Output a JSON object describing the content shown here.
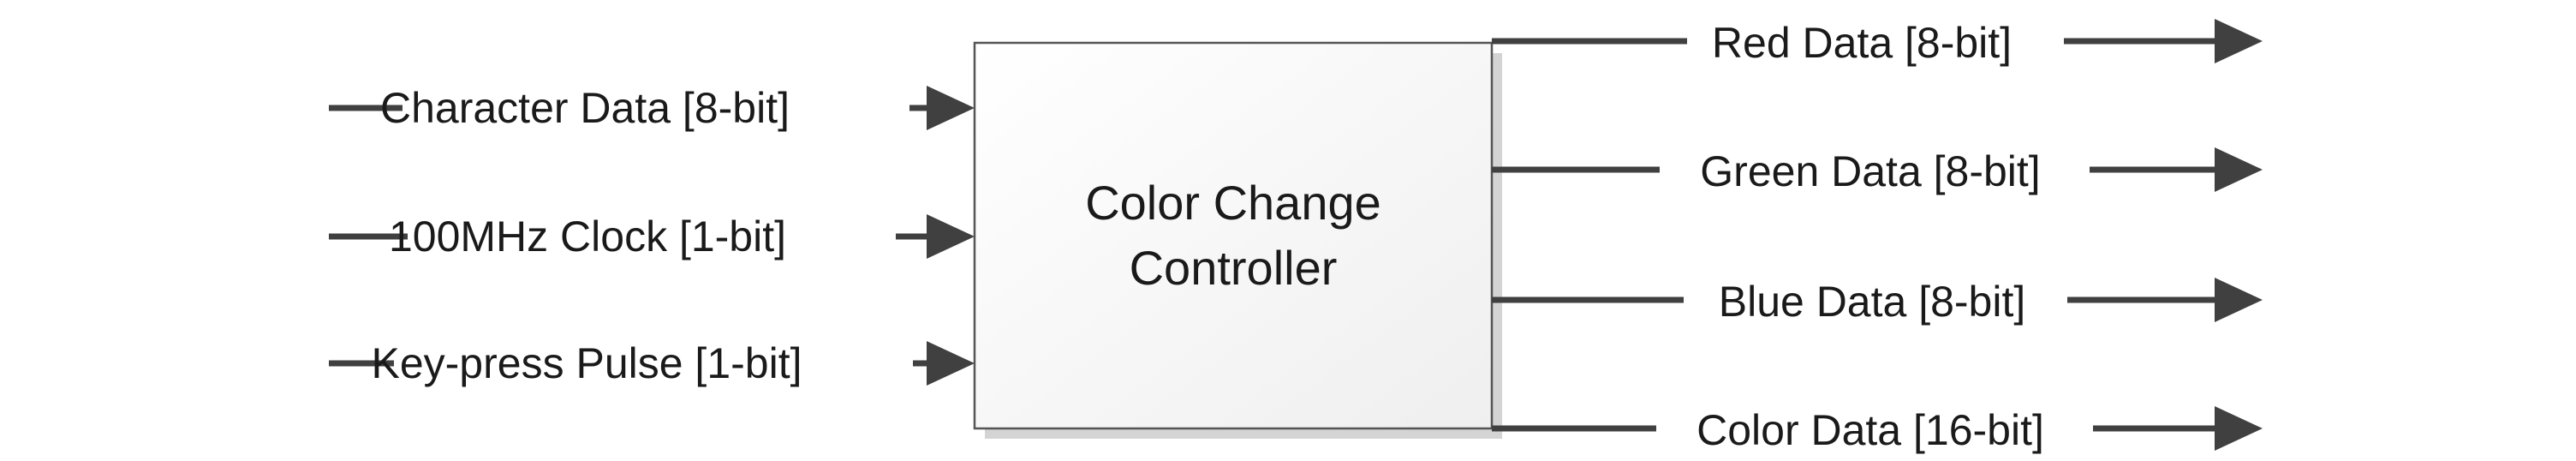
{
  "block": {
    "label_line1": "Color Change",
    "label_line2": "Controller"
  },
  "inputs": [
    {
      "label": "Character Data [8-bit]"
    },
    {
      "label": "100MHz Clock [1-bit]"
    },
    {
      "label": "Key-press Pulse [1-bit]"
    }
  ],
  "outputs": [
    {
      "label": "Red Data [8-bit]"
    },
    {
      "label": "Green Data [8-bit]"
    },
    {
      "label": "Blue Data [8-bit]"
    },
    {
      "label": "Color Data [16-bit]"
    }
  ],
  "colors": {
    "wire": "#404040",
    "block_fill": "#f4f4f4",
    "block_border": "#555555",
    "block_shadow": "#d0d0d0"
  }
}
